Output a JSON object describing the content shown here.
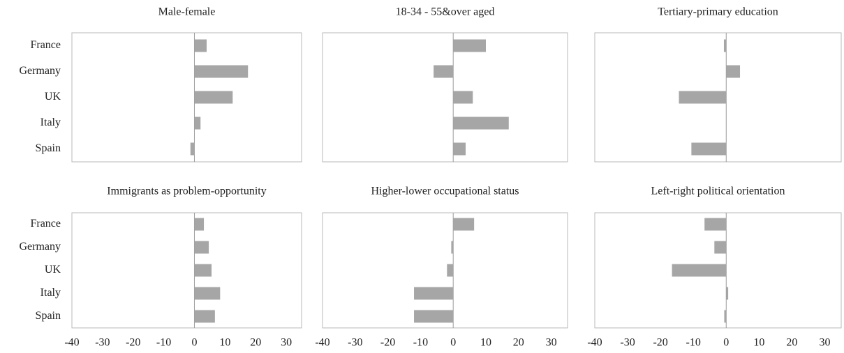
{
  "chart_data": [
    {
      "type": "bar",
      "orientation": "horizontal",
      "title": "Male-female",
      "categories": [
        "France",
        "Germany",
        "UK",
        "Italy",
        "Spain"
      ],
      "values": [
        4,
        17.5,
        12.5,
        2,
        -1.3
      ],
      "color": "#a6a6a6",
      "xlim": [
        -40,
        35
      ]
    },
    {
      "type": "bar",
      "orientation": "horizontal",
      "title": "18-34 - 55&over aged",
      "values": [
        10,
        -6,
        6,
        17,
        3.8
      ],
      "color": "#a6a6a6",
      "xlim": [
        -40,
        35
      ]
    },
    {
      "type": "bar",
      "orientation": "horizontal",
      "title": "Tertiary-primary education",
      "values": [
        -0.7,
        4.2,
        -14.4,
        null,
        -10.6
      ],
      "color": "#a6a6a6",
      "xlim": [
        -40,
        35
      ]
    },
    {
      "type": "bar",
      "orientation": "horizontal",
      "title": "Immigrants as problem-opportunity",
      "categories": [
        "France",
        "Germany",
        "UK",
        "Italy",
        "Spain"
      ],
      "values": [
        3.1,
        4.7,
        5.6,
        8.4,
        6.7
      ],
      "color": "#a6a6a6",
      "xlim": [
        -40,
        35
      ],
      "xticks": [
        -40,
        -30,
        -20,
        -10,
        0,
        10,
        20,
        30
      ]
    },
    {
      "type": "bar",
      "orientation": "horizontal",
      "title": "Higher-lower occupational status",
      "values": [
        6.4,
        -0.6,
        -1.9,
        -12,
        -12
      ],
      "color": "#a6a6a6",
      "xlim": [
        -40,
        35
      ],
      "xticks": [
        -40,
        -30,
        -20,
        -10,
        0,
        10,
        20,
        30
      ]
    },
    {
      "type": "bar",
      "orientation": "horizontal",
      "title": "Left-right political orientation",
      "values": [
        -6.6,
        -3.6,
        -16.5,
        0.6,
        -0.6
      ],
      "color": "#a6a6a6",
      "xlim": [
        -40,
        35
      ],
      "xticks": [
        -40,
        -30,
        -20,
        -10,
        0,
        10,
        20,
        30
      ]
    }
  ]
}
